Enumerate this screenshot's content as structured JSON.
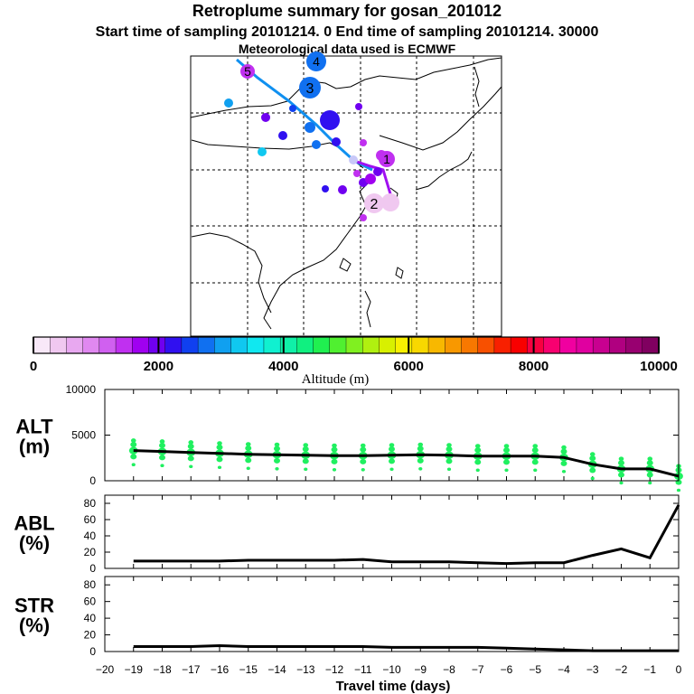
{
  "title": "Retroplume summary for gosan_201012",
  "subtitle": "Start time of sampling 20101214.     0      End time of sampling 20101214. 30000",
  "met_line": "Meteorological data used is ECMWF",
  "colorbar": {
    "label": "Altitude (m)",
    "ticks": [
      "0",
      "2000",
      "4000",
      "6000",
      "8000",
      "10000"
    ],
    "colors": [
      "#f8e8f8",
      "#f0c8f0",
      "#e8a8f0",
      "#e088f0",
      "#d060f0",
      "#c030f0",
      "#a000f0",
      "#7000f0",
      "#3010f0",
      "#1040f0",
      "#1070f0",
      "#10a0f0",
      "#10c8f0",
      "#10e8f0",
      "#10f0d0",
      "#10f0a8",
      "#10f080",
      "#20f050",
      "#50f030",
      "#80f020",
      "#b0f010",
      "#d8f000",
      "#f8f000",
      "#f8d800",
      "#f8b800",
      "#f89800",
      "#f87800",
      "#f85000",
      "#f82000",
      "#f80000",
      "#f80040",
      "#f80070",
      "#f000a0",
      "#e000a0",
      "#c80090",
      "#b00080",
      "#980070",
      "#800060"
    ]
  },
  "map": {
    "markers": [
      {
        "label": "1",
        "color": "#c030f0"
      },
      {
        "label": "2",
        "color": "#f0c8f0"
      },
      {
        "label": "3",
        "color": "#1070f0"
      },
      {
        "label": "4",
        "color": "#1070f0"
      },
      {
        "label": "5",
        "color": "#c030f0"
      }
    ]
  },
  "chart_data": [
    {
      "type": "line",
      "panel": "ALT",
      "ylabel": "ALT\n(m)",
      "ylabel_line1": "ALT",
      "ylabel_line2": "(m)",
      "ylim": [
        0,
        10000
      ],
      "yticks": [
        "0",
        "5000",
        "10000"
      ],
      "x": [
        -19,
        -18,
        -17,
        -16,
        -15,
        -14,
        -13,
        -12,
        -11,
        -10,
        -9,
        -8,
        -7,
        -6,
        -5,
        -4,
        -3,
        -2,
        -1,
        0
      ],
      "series": [
        {
          "name": "mean altitude",
          "values": [
            3300,
            3200,
            3100,
            3000,
            2900,
            2850,
            2800,
            2750,
            2750,
            2800,
            2850,
            2800,
            2700,
            2700,
            2700,
            2550,
            1800,
            1300,
            1300,
            500
          ]
        }
      ],
      "cluster_color": "#20f060"
    },
    {
      "type": "line",
      "panel": "ABL",
      "ylabel_line1": "ABL",
      "ylabel_line2": "(%)",
      "ylim": [
        0,
        90
      ],
      "yticks": [
        "0",
        "20",
        "40",
        "60",
        "80"
      ],
      "x": [
        -19,
        -18,
        -17,
        -16,
        -15,
        -14,
        -13,
        -12,
        -11,
        -10,
        -9,
        -8,
        -7,
        -6,
        -5,
        -4,
        -3,
        -2,
        -1,
        0
      ],
      "series": [
        {
          "name": "ABL fraction",
          "values": [
            9,
            9,
            9,
            9,
            10,
            10,
            10,
            10,
            11,
            8,
            8,
            8,
            7,
            6,
            7,
            7,
            16,
            24,
            13,
            78
          ]
        }
      ]
    },
    {
      "type": "line",
      "panel": "STR",
      "ylabel_line1": "STR",
      "ylabel_line2": "(%)",
      "ylim": [
        0,
        90
      ],
      "yticks": [
        "0",
        "20",
        "40",
        "60",
        "80"
      ],
      "x": [
        -19,
        -18,
        -17,
        -16,
        -15,
        -14,
        -13,
        -12,
        -11,
        -10,
        -9,
        -8,
        -7,
        -6,
        -5,
        -4,
        -3,
        -2,
        -1,
        0
      ],
      "series": [
        {
          "name": "STR fraction",
          "values": [
            6,
            6,
            6,
            7,
            6,
            6,
            6,
            6,
            6,
            5,
            5,
            5,
            5,
            4,
            3,
            2,
            1,
            1,
            1,
            1
          ]
        }
      ]
    }
  ],
  "xaxis": {
    "label": "Travel time (days)",
    "ticks": [
      "−20",
      "−19",
      "−18",
      "−17",
      "−16",
      "−15",
      "−14",
      "−13",
      "−12",
      "−11",
      "−10",
      "−9",
      "−8",
      "−7",
      "−6",
      "−5",
      "−4",
      "−3",
      "−2",
      "−1",
      "0"
    ]
  }
}
